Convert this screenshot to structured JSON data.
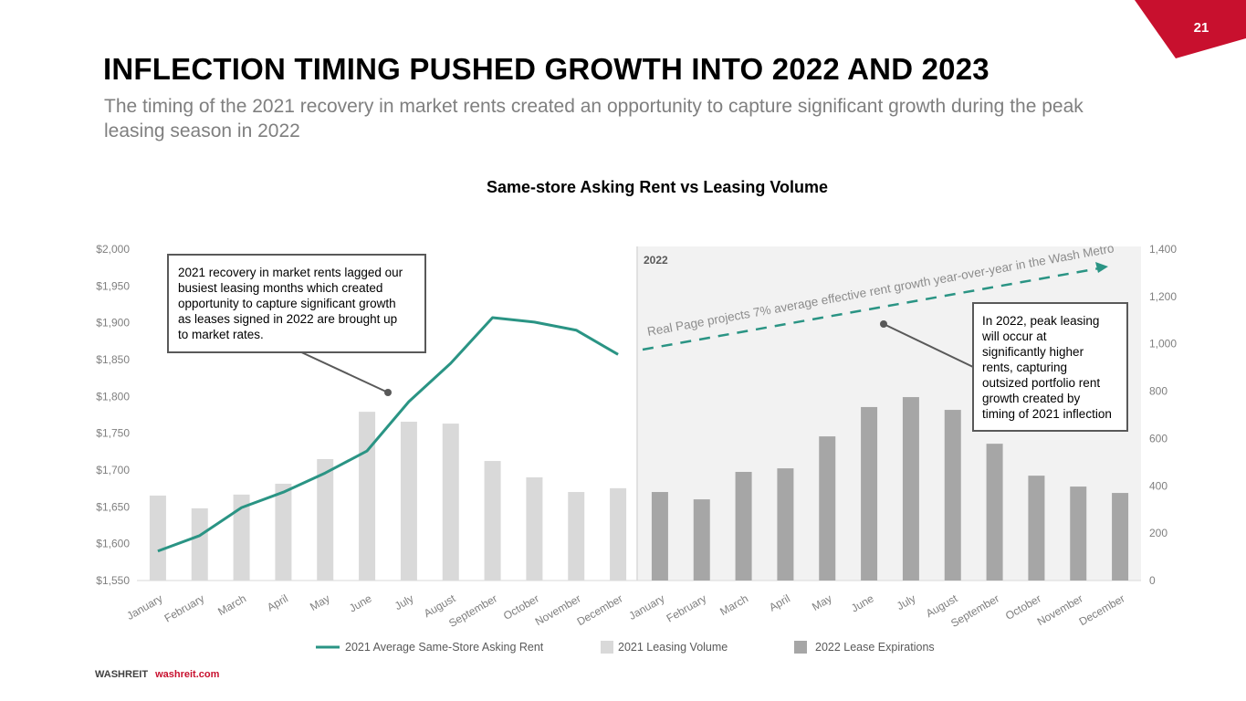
{
  "slide": {
    "page_number": "21",
    "title": "INFLECTION TIMING PUSHED GROWTH INTO 2022 AND 2023",
    "subtitle": "The timing of the 2021 recovery in market rents created an opportunity to capture significant growth during the peak leasing season in 2022",
    "footer_brand": "WASHREIT",
    "footer_url": "washreit.com",
    "accent_color": "#c8102e"
  },
  "chart_data": {
    "type": "bar",
    "title": "Same-store Asking Rent vs Leasing Volume",
    "categories": [
      "January",
      "February",
      "March",
      "April",
      "May",
      "June",
      "July",
      "August",
      "September",
      "October",
      "November",
      "December",
      "January",
      "February",
      "March",
      "April",
      "May",
      "June",
      "July",
      "August",
      "September",
      "October",
      "November",
      "December"
    ],
    "series": [
      {
        "name": "2021 Average Same-Store Asking Rent",
        "type": "line",
        "axis": "left",
        "color": "#2a9484",
        "values": [
          1590,
          1611,
          1649,
          1670,
          1696,
          1726,
          1793,
          1845,
          1907,
          1901,
          1890,
          1857,
          null,
          null,
          null,
          null,
          null,
          null,
          null,
          null,
          null,
          null,
          null,
          null
        ]
      },
      {
        "name": "2021 Leasing Volume",
        "type": "bar",
        "axis": "right",
        "color": "#d9d9d9",
        "values": [
          359,
          305,
          363,
          409,
          513,
          713,
          671,
          663,
          505,
          436,
          374,
          390,
          null,
          null,
          null,
          null,
          null,
          null,
          null,
          null,
          null,
          null,
          null,
          null
        ]
      },
      {
        "name": "2022 Lease Expirations",
        "type": "bar",
        "axis": "right",
        "color": "#a6a6a6",
        "values": [
          null,
          null,
          null,
          null,
          null,
          null,
          null,
          null,
          null,
          null,
          null,
          null,
          374,
          343,
          459,
          474,
          609,
          733,
          775,
          721,
          578,
          443,
          397,
          370
        ]
      }
    ],
    "left_axis": {
      "min": 1550,
      "max": 2000,
      "step": 50,
      "ticks": [
        "$1,550",
        "$1,600",
        "$1,650",
        "$1,700",
        "$1,750",
        "$1,800",
        "$1,850",
        "$1,900",
        "$1,950",
        "$2,000"
      ]
    },
    "right_axis": {
      "min": 0,
      "max": 1400,
      "step": 200,
      "ticks": [
        "0",
        "200",
        "400",
        "600",
        "800",
        "1,000",
        "1,200",
        "1,400"
      ]
    },
    "shaded_region": {
      "label": "2022",
      "from_index": 12,
      "to_index": 23,
      "color": "#f2f2f2"
    },
    "projection": {
      "label": "Real Page projects 7% average effective rent growth year-over-year in the Wash Metro",
      "style": "dashed-arrow",
      "color": "#2a9484"
    },
    "annotations": [
      {
        "text": "2021 recovery in market rents lagged our busiest leasing months which created opportunity to capture significant growth as leases signed in 2022 are brought up to market rates.",
        "lines": [
          "2021 recovery in market rents lagged our",
          "busiest leasing months which created",
          "opportunity to capture significant growth",
          "as leases signed in 2022 are brought up",
          "to market rates."
        ]
      },
      {
        "text": "In 2022, peak leasing will occur at significantly higher rents, capturing outsized portfolio rent growth created by timing of 2021 inflection",
        "lines": [
          "In 2022, peak leasing",
          "will occur at",
          "significantly higher",
          "rents, capturing",
          "outsized portfolio rent",
          "growth created by",
          "timing of 2021 inflection"
        ]
      }
    ],
    "legend_position": "bottom",
    "grid": false
  }
}
